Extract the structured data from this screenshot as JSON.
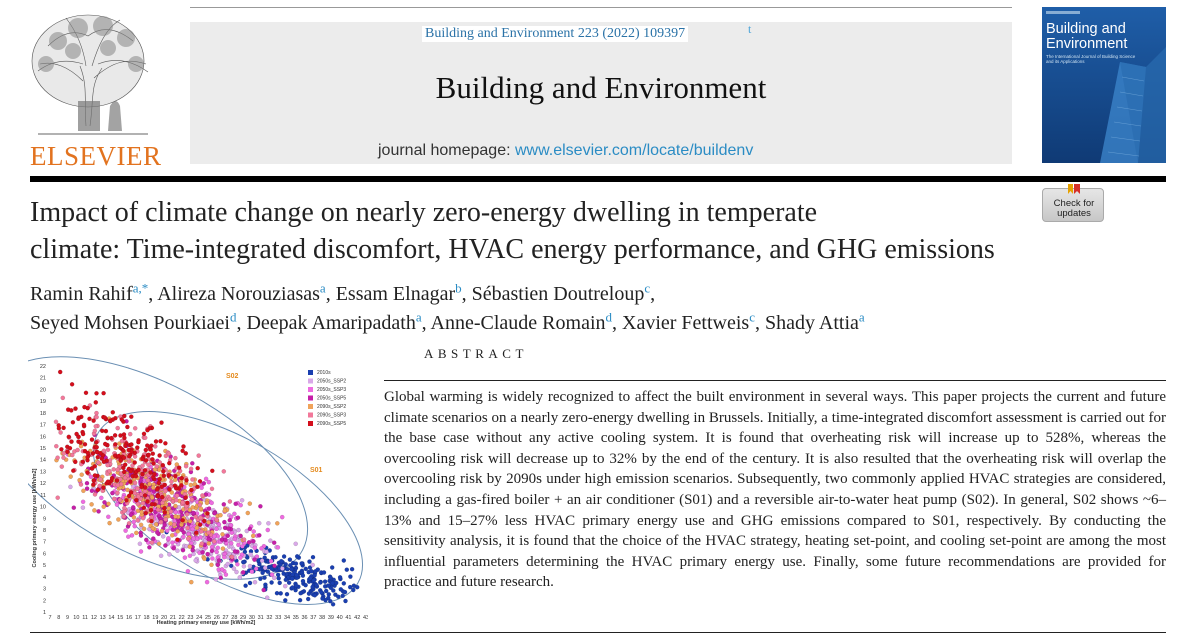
{
  "publisher": {
    "logo_text": "ELSEVIER",
    "logo_color": "#e2731f"
  },
  "journal": {
    "citation": "Building and Environment 223 (2022) 109397",
    "citation_mark": "t",
    "title": "Building and Environment",
    "homepage_prefix": "journal homepage: ",
    "homepage_link": "www.elsevier.com/locate/buildenv"
  },
  "cover": {
    "title": "Building and Environment",
    "subtitle": "The International Journal of Building Science and its Applications"
  },
  "check_updates": {
    "label": "Check for updates"
  },
  "article": {
    "title_line1": "Impact of climate change on nearly zero-energy dwelling in temperate",
    "title_line2": "climate: Time-integrated discomfort, HVAC energy performance, and GHG emissions"
  },
  "authors": [
    {
      "name": "Ramin Rahif",
      "aff": "a,*",
      "sep": ", "
    },
    {
      "name": "Alireza Norouziasas",
      "aff": "a",
      "sep": ", "
    },
    {
      "name": "Essam Elnagar",
      "aff": "b",
      "sep": ", "
    },
    {
      "name": "Sébastien Doutreloup",
      "aff": "c",
      "sep": ","
    },
    {
      "name": "Seyed Mohsen Pourkiaei",
      "aff": "d",
      "sep": ", "
    },
    {
      "name": "Deepak Amaripadath",
      "aff": "a",
      "sep": ", "
    },
    {
      "name": "Anne-Claude Romain",
      "aff": "d",
      "sep": ", "
    },
    {
      "name": "Xavier Fettweis",
      "aff": "c",
      "sep": ",  "
    },
    {
      "name": "Shady Attia",
      "aff": "a",
      "sep": ""
    }
  ],
  "abstract": {
    "heading": "ABSTRACT",
    "text": "Global warming is widely recognized to affect the built environment in several ways. This paper projects the current and future climate scenarios on a nearly zero-energy dwelling in Brussels. Initially, a time-integrated discomfort assessment is carried out for the base case without any active cooling system. It is found that overheating risk will increase up to 528%, whereas the overcooling risk will decrease up to 32% by the end of the century. It is also resulted that the overheating risk will overlap the overcooling risk by 2090s under high emission scenarios. Subsequently, two commonly applied HVAC strategies are considered, including a gas-fired boiler + an air conditioner (S01) and a reversible air-to-water heat pump (S02). In general, S02 shows ~6–13% and 15–27% less HVAC primary energy use and GHG emissions compared to S01, respectively. By conducting the sensitivity analysis, it is found that the choice of the HVAC strategy, heating set-point, and cooling set-point are among the most influential parameters determining the HVAC primary energy use. Finally, some future recommendations are provided for practice and future research."
  },
  "chart_data": {
    "type": "scatter",
    "xlabel": "Heating primary energy use [kWh/m2]",
    "ylabel": "Cooling primary energy use [kWh/m2]",
    "xlim": [
      7,
      43
    ],
    "ylim": [
      1,
      22
    ],
    "x_ticks": [
      "7",
      "8",
      "9",
      "10",
      "11",
      "12",
      "13",
      "14",
      "15",
      "16",
      "17",
      "18",
      "19",
      "20",
      "21",
      "22",
      "23",
      "24",
      "25",
      "26",
      "27",
      "28",
      "29",
      "30",
      "31",
      "32",
      "33",
      "34",
      "35",
      "36",
      "37",
      "38",
      "39",
      "40",
      "41",
      "42",
      "43"
    ],
    "y_ticks": [
      "1",
      "2",
      "3",
      "4",
      "5",
      "6",
      "7",
      "8",
      "9",
      "10",
      "11",
      "12",
      "13",
      "14",
      "15",
      "16",
      "17",
      "18",
      "19",
      "20",
      "21",
      "22"
    ],
    "legend_position": "top-right",
    "series": [
      {
        "name": "2010s",
        "color": "#1a3fb0",
        "cx": 35,
        "cy": 4,
        "sx": 3.5,
        "sy": 1.2
      },
      {
        "name": "2050s_SSP2",
        "color": "#d9a8e8",
        "cx": 24,
        "cy": 8,
        "sx": 4.5,
        "sy": 2.2
      },
      {
        "name": "2050s_SSP3",
        "color": "#ee6be0",
        "cx": 22,
        "cy": 9,
        "sx": 4.5,
        "sy": 2.4
      },
      {
        "name": "2050s_SSP5",
        "color": "#c61fa8",
        "cx": 20,
        "cy": 10,
        "sx": 4.5,
        "sy": 2.6
      },
      {
        "name": "2090s_SSP2",
        "color": "#f0a35a",
        "cx": 19,
        "cy": 11,
        "sx": 4.5,
        "sy": 2.6
      },
      {
        "name": "2090s_SSP3",
        "color": "#f2789a",
        "cx": 17,
        "cy": 12.5,
        "sx": 4.5,
        "sy": 2.8
      },
      {
        "name": "2090s_SSP5",
        "color": "#d40e1c",
        "cx": 15,
        "cy": 14.5,
        "sx": 4.5,
        "sy": 3.0
      }
    ],
    "annotations": [
      {
        "text": "S02",
        "color": "#e48a1d"
      },
      {
        "text": "S01",
        "color": "#e48a1d"
      }
    ]
  }
}
